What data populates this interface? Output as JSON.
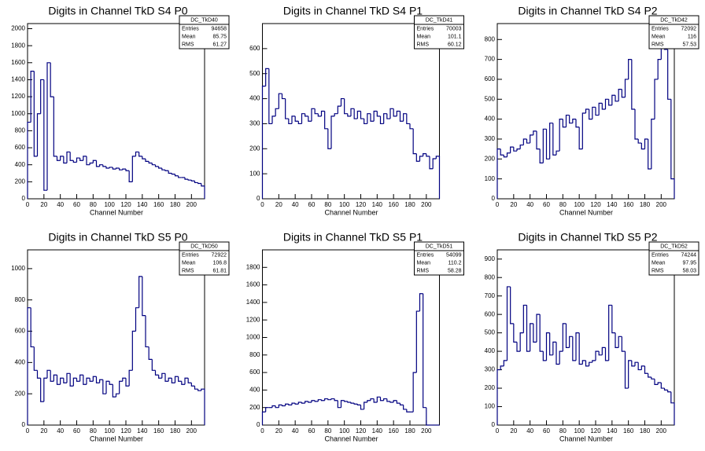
{
  "chart_data": [
    {
      "type": "histogram",
      "title": "Digits in Channel TkD S4 P0",
      "xlabel": "Channel Number",
      "color": "#000080",
      "bins": [
        0,
        4,
        8,
        12,
        16,
        20,
        24,
        28,
        32,
        36,
        40,
        44,
        48,
        52,
        56,
        60,
        64,
        68,
        72,
        76,
        80,
        84,
        88,
        92,
        96,
        100,
        104,
        108,
        112,
        116,
        120,
        124,
        128,
        132,
        136,
        140,
        144,
        148,
        152,
        156,
        160,
        164,
        168,
        172,
        176,
        180,
        184,
        188,
        192,
        196,
        200,
        204,
        208,
        212,
        216
      ],
      "counts": [
        900,
        1500,
        500,
        1000,
        1400,
        100,
        1600,
        1200,
        500,
        450,
        500,
        420,
        550,
        450,
        430,
        480,
        450,
        500,
        400,
        420,
        450,
        380,
        400,
        380,
        360,
        370,
        350,
        360,
        340,
        350,
        330,
        200,
        500,
        550,
        500,
        470,
        440,
        420,
        400,
        380,
        360,
        340,
        330,
        300,
        290,
        270,
        250,
        250,
        230,
        220,
        210,
        190,
        180,
        150
      ],
      "xlim": [
        0,
        216
      ],
      "xticks": [
        0,
        20,
        40,
        60,
        80,
        100,
        120,
        140,
        160,
        180,
        200
      ],
      "ylim": [
        0,
        2060
      ],
      "yticks": [
        0,
        200,
        400,
        600,
        800,
        1000,
        1200,
        1400,
        1600,
        1800,
        2000
      ],
      "stats": {
        "name": "DC_TkD40",
        "rows": [
          {
            "label": "Entries",
            "value": 94658
          },
          {
            "label": "Mean",
            "value": 85.75
          },
          {
            "label": "RMS",
            "value": 61.27
          }
        ]
      }
    },
    {
      "type": "histogram",
      "title": "Digits in Channel TkD S4 P1",
      "xlabel": "Channel Number",
      "color": "#000080",
      "bins": [
        0,
        4,
        8,
        12,
        16,
        20,
        24,
        28,
        32,
        36,
        40,
        44,
        48,
        52,
        56,
        60,
        64,
        68,
        72,
        76,
        80,
        84,
        88,
        92,
        96,
        100,
        104,
        108,
        112,
        116,
        120,
        124,
        128,
        132,
        136,
        140,
        144,
        148,
        152,
        156,
        160,
        164,
        168,
        172,
        176,
        180,
        184,
        188,
        192,
        196,
        200,
        204,
        208,
        212,
        216
      ],
      "counts": [
        450,
        520,
        300,
        330,
        360,
        420,
        400,
        320,
        300,
        330,
        310,
        300,
        340,
        330,
        310,
        360,
        340,
        330,
        350,
        280,
        200,
        330,
        340,
        370,
        400,
        340,
        330,
        360,
        320,
        350,
        320,
        300,
        340,
        310,
        350,
        330,
        300,
        340,
        320,
        360,
        330,
        350,
        310,
        340,
        300,
        280,
        180,
        150,
        170,
        180,
        170,
        120,
        160,
        170
      ],
      "xlim": [
        0,
        216
      ],
      "xticks": [
        0,
        20,
        40,
        60,
        80,
        100,
        120,
        140,
        160,
        180,
        200
      ],
      "ylim": [
        0,
        700
      ],
      "yticks": [
        0,
        100,
        200,
        300,
        400,
        500,
        600
      ],
      "stats": {
        "name": "DC_TkD41",
        "rows": [
          {
            "label": "Entries",
            "value": 70003
          },
          {
            "label": "Mean",
            "value": 101.1
          },
          {
            "label": "RMS",
            "value": 60.12
          }
        ]
      }
    },
    {
      "type": "histogram",
      "title": "Digits in Channel TkD S4 P2",
      "xlabel": "Channel Number",
      "color": "#000080",
      "bins": [
        0,
        4,
        8,
        12,
        16,
        20,
        24,
        28,
        32,
        36,
        40,
        44,
        48,
        52,
        56,
        60,
        64,
        68,
        72,
        76,
        80,
        84,
        88,
        92,
        96,
        100,
        104,
        108,
        112,
        116,
        120,
        124,
        128,
        132,
        136,
        140,
        144,
        148,
        152,
        156,
        160,
        164,
        168,
        172,
        176,
        180,
        184,
        188,
        192,
        196,
        200,
        204,
        208,
        212,
        216
      ],
      "counts": [
        250,
        220,
        210,
        230,
        260,
        240,
        250,
        270,
        300,
        280,
        320,
        340,
        250,
        180,
        350,
        200,
        380,
        220,
        240,
        400,
        360,
        420,
        380,
        400,
        360,
        250,
        430,
        450,
        400,
        460,
        420,
        480,
        450,
        500,
        470,
        520,
        490,
        550,
        510,
        600,
        700,
        450,
        300,
        280,
        250,
        300,
        150,
        400,
        600,
        700,
        800,
        750,
        500,
        100
      ],
      "xlim": [
        0,
        216
      ],
      "xticks": [
        0,
        20,
        40,
        60,
        80,
        100,
        120,
        140,
        160,
        180,
        200
      ],
      "ylim": [
        0,
        880
      ],
      "yticks": [
        0,
        100,
        200,
        300,
        400,
        500,
        600,
        700,
        800
      ],
      "stats": {
        "name": "DC_TkD42",
        "rows": [
          {
            "label": "Entries",
            "value": 72092
          },
          {
            "label": "Mean",
            "value": 116
          },
          {
            "label": "RMS",
            "value": 57.53
          }
        ]
      }
    },
    {
      "type": "histogram",
      "title": "Digits in Channel TkD S5 P0",
      "xlabel": "Channel Number",
      "color": "#000080",
      "bins": [
        0,
        4,
        8,
        12,
        16,
        20,
        24,
        28,
        32,
        36,
        40,
        44,
        48,
        52,
        56,
        60,
        64,
        68,
        72,
        76,
        80,
        84,
        88,
        92,
        96,
        100,
        104,
        108,
        112,
        116,
        120,
        124,
        128,
        132,
        136,
        140,
        144,
        148,
        152,
        156,
        160,
        164,
        168,
        172,
        176,
        180,
        184,
        188,
        192,
        196,
        200,
        204,
        208,
        212,
        216
      ],
      "counts": [
        750,
        500,
        350,
        300,
        150,
        300,
        350,
        280,
        320,
        260,
        300,
        270,
        330,
        250,
        300,
        280,
        320,
        260,
        300,
        280,
        310,
        270,
        290,
        200,
        280,
        260,
        180,
        200,
        280,
        300,
        250,
        350,
        600,
        750,
        950,
        700,
        500,
        420,
        350,
        320,
        300,
        330,
        280,
        300,
        270,
        310,
        280,
        260,
        300,
        270,
        250,
        230,
        220,
        230
      ],
      "xlim": [
        0,
        216
      ],
      "xticks": [
        0,
        20,
        40,
        60,
        80,
        100,
        120,
        140,
        160,
        180,
        200
      ],
      "ylim": [
        0,
        1120
      ],
      "yticks": [
        0,
        200,
        400,
        600,
        800,
        1000
      ],
      "stats": {
        "name": "DC_TkD50",
        "rows": [
          {
            "label": "Entries",
            "value": 72922
          },
          {
            "label": "Mean",
            "value": 106.8
          },
          {
            "label": "RMS",
            "value": 61.81
          }
        ]
      }
    },
    {
      "type": "histogram",
      "title": "Digits in Channel TkD S5 P1",
      "xlabel": "Channel Number",
      "color": "#000080",
      "bins": [
        0,
        4,
        8,
        12,
        16,
        20,
        24,
        28,
        32,
        36,
        40,
        44,
        48,
        52,
        56,
        60,
        64,
        68,
        72,
        76,
        80,
        84,
        88,
        92,
        96,
        100,
        104,
        108,
        112,
        116,
        120,
        124,
        128,
        132,
        136,
        140,
        144,
        148,
        152,
        156,
        160,
        164,
        168,
        172,
        176,
        180,
        184,
        188,
        192,
        196,
        200,
        204,
        208,
        212,
        216
      ],
      "counts": [
        150,
        200,
        200,
        220,
        200,
        230,
        220,
        240,
        230,
        250,
        240,
        260,
        250,
        270,
        260,
        280,
        270,
        290,
        280,
        300,
        290,
        300,
        280,
        200,
        280,
        270,
        260,
        250,
        240,
        230,
        180,
        260,
        280,
        300,
        260,
        320,
        280,
        300,
        270,
        260,
        280,
        250,
        230,
        180,
        150,
        150,
        600,
        1300,
        1500,
        200,
        0,
        0,
        0,
        0
      ],
      "xlim": [
        0,
        216
      ],
      "xticks": [
        0,
        20,
        40,
        60,
        80,
        100,
        120,
        140,
        160,
        180,
        200
      ],
      "ylim": [
        0,
        2000
      ],
      "yticks": [
        0,
        200,
        400,
        600,
        800,
        1000,
        1200,
        1400,
        1600,
        1800
      ],
      "stats": {
        "name": "DC_TkD51",
        "rows": [
          {
            "label": "Entries",
            "value": 54099
          },
          {
            "label": "Mean",
            "value": 110.2
          },
          {
            "label": "RMS",
            "value": 58.28
          }
        ]
      }
    },
    {
      "type": "histogram",
      "title": "Digits in Channel TkD S5 P2",
      "xlabel": "Channel Number",
      "color": "#000080",
      "bins": [
        0,
        4,
        8,
        12,
        16,
        20,
        24,
        28,
        32,
        36,
        40,
        44,
        48,
        52,
        56,
        60,
        64,
        68,
        72,
        76,
        80,
        84,
        88,
        92,
        96,
        100,
        104,
        108,
        112,
        116,
        120,
        124,
        128,
        132,
        136,
        140,
        144,
        148,
        152,
        156,
        160,
        164,
        168,
        172,
        176,
        180,
        184,
        188,
        192,
        196,
        200,
        204,
        208,
        212,
        216
      ],
      "counts": [
        300,
        320,
        350,
        750,
        550,
        450,
        400,
        500,
        650,
        400,
        550,
        450,
        600,
        400,
        350,
        500,
        380,
        450,
        330,
        400,
        550,
        420,
        480,
        350,
        500,
        330,
        350,
        320,
        340,
        350,
        400,
        380,
        420,
        350,
        650,
        500,
        420,
        480,
        400,
        200,
        350,
        320,
        340,
        300,
        320,
        280,
        260,
        250,
        220,
        230,
        200,
        190,
        180,
        120
      ],
      "xlim": [
        0,
        216
      ],
      "xticks": [
        0,
        20,
        40,
        60,
        80,
        100,
        120,
        140,
        160,
        180,
        200
      ],
      "ylim": [
        0,
        950
      ],
      "yticks": [
        0,
        100,
        200,
        300,
        400,
        500,
        600,
        700,
        800,
        900
      ],
      "stats": {
        "name": "DC_TkD52",
        "rows": [
          {
            "label": "Entries",
            "value": 74244
          },
          {
            "label": "Mean",
            "value": 97.95
          },
          {
            "label": "RMS",
            "value": 58.03
          }
        ]
      }
    }
  ]
}
